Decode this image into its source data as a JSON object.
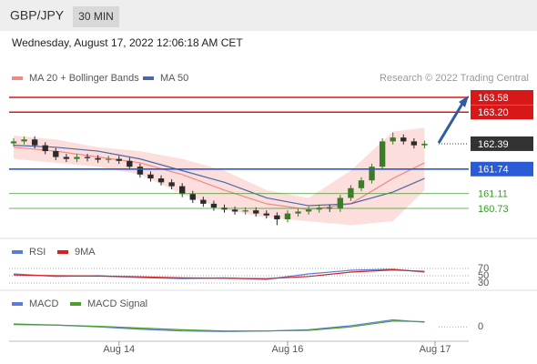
{
  "header": {
    "symbol": "GBP/JPY",
    "interval": "30 MIN",
    "timestamp": "Wednesday, August 17, 2022 12:06:18 AM CET",
    "credit": "Research © 2022 Trading Central"
  },
  "chart_data": [
    {
      "type": "candlestick",
      "xlim": [
        0,
        40
      ],
      "ylim": [
        159.96,
        163.86
      ],
      "up_color": "#3d7a2a",
      "down_color": "#2b2b2b",
      "ohlc": {
        "x": [
          0,
          1,
          2,
          3,
          4,
          5,
          6,
          7,
          8,
          9,
          10,
          11,
          12,
          13,
          14,
          15,
          16,
          17,
          18,
          19,
          20,
          21,
          22,
          23,
          24,
          25,
          26,
          27,
          28,
          29,
          30,
          31,
          32,
          33,
          34,
          35,
          36,
          37,
          38,
          39
        ],
        "open": [
          162.4,
          162.45,
          162.5,
          162.35,
          162.2,
          162.05,
          162.0,
          162.05,
          162.02,
          161.98,
          162.0,
          161.95,
          161.8,
          161.6,
          161.5,
          161.4,
          161.3,
          161.1,
          160.95,
          160.85,
          160.75,
          160.7,
          160.65,
          160.68,
          160.6,
          160.55,
          160.45,
          160.6,
          160.65,
          160.7,
          160.75,
          160.72,
          161.0,
          161.25,
          161.45,
          161.8,
          162.45,
          162.55,
          162.45,
          162.35
        ],
        "high": [
          162.53,
          162.58,
          162.58,
          162.43,
          162.28,
          162.13,
          162.13,
          162.13,
          162.1,
          162.08,
          162.08,
          162.03,
          161.88,
          161.68,
          161.58,
          161.48,
          161.38,
          161.18,
          161.03,
          160.93,
          160.83,
          160.78,
          160.76,
          160.76,
          160.68,
          160.63,
          160.68,
          160.73,
          160.78,
          160.83,
          160.83,
          161.08,
          161.33,
          161.53,
          161.88,
          162.53,
          162.68,
          162.63,
          162.53,
          162.47
        ],
        "low": [
          162.32,
          162.37,
          162.27,
          162.12,
          161.97,
          161.92,
          161.92,
          161.94,
          161.9,
          161.9,
          161.87,
          161.72,
          161.52,
          161.42,
          161.32,
          161.22,
          161.02,
          160.87,
          160.77,
          160.67,
          160.62,
          160.57,
          160.57,
          160.52,
          160.47,
          160.3,
          160.37,
          160.52,
          160.57,
          160.62,
          160.64,
          160.64,
          160.92,
          161.17,
          161.37,
          161.72,
          162.37,
          162.37,
          162.27,
          162.27
        ],
        "close": [
          162.45,
          162.5,
          162.35,
          162.2,
          162.05,
          162.0,
          162.05,
          162.02,
          161.98,
          162.0,
          161.95,
          161.8,
          161.6,
          161.5,
          161.4,
          161.3,
          161.1,
          160.95,
          160.85,
          160.75,
          160.7,
          160.65,
          160.68,
          160.6,
          160.55,
          160.45,
          160.6,
          160.65,
          160.7,
          160.75,
          160.72,
          161.0,
          161.25,
          161.45,
          161.8,
          162.45,
          162.55,
          162.45,
          162.35,
          162.39
        ]
      },
      "series": [
        {
          "name": "MA 20 + Bollinger Bands",
          "color": "#f08a84",
          "band_color": "#fbd3d0",
          "x": [
            0,
            4,
            8,
            12,
            16,
            20,
            24,
            28,
            32,
            36,
            39
          ],
          "values": [
            162.3,
            162.2,
            162.05,
            161.9,
            161.6,
            161.2,
            160.85,
            160.7,
            160.85,
            161.5,
            161.9
          ],
          "upper": [
            162.6,
            162.5,
            162.3,
            162.2,
            162.0,
            161.7,
            161.2,
            161.0,
            161.7,
            162.7,
            162.8
          ],
          "lower": [
            162.0,
            161.9,
            161.8,
            161.6,
            161.1,
            160.7,
            160.5,
            160.4,
            160.3,
            160.4,
            161.2
          ]
        },
        {
          "name": "MA 50",
          "color": "#4a68a8",
          "x": [
            0,
            4,
            8,
            12,
            16,
            20,
            24,
            28,
            32,
            36,
            39
          ],
          "values": [
            162.35,
            162.3,
            162.2,
            162.0,
            161.7,
            161.4,
            161.0,
            160.8,
            160.85,
            161.15,
            161.5
          ]
        }
      ],
      "levels": [
        {
          "value": 163.58,
          "color": "#d81818",
          "boxed": true
        },
        {
          "value": 163.2,
          "label": "163.20",
          "color": "#d81818",
          "boxed": true
        },
        {
          "value": 162.39,
          "color": "#333333",
          "boxed": true,
          "dotted": true
        },
        {
          "value": 161.74,
          "color": "#2a5bd7",
          "boxed": true
        },
        {
          "value": 161.11,
          "color": "#3c9a2a",
          "boxed": false
        },
        {
          "value": 160.73,
          "color": "#3c9a2a",
          "boxed": false
        }
      ]
    },
    {
      "type": "line",
      "xlim": [
        0,
        40
      ],
      "ylim": [
        20,
        95
      ],
      "yticks": [
        70,
        50,
        30
      ],
      "series": [
        {
          "name": "RSI",
          "color": "#5b7bd5",
          "x": [
            0,
            4,
            8,
            12,
            16,
            20,
            24,
            28,
            32,
            36,
            39
          ],
          "values": [
            55,
            48,
            50,
            45,
            42,
            44,
            40,
            55,
            65,
            68,
            60
          ]
        },
        {
          "name": "9MA",
          "color": "#d42020",
          "x": [
            0,
            4,
            8,
            12,
            16,
            20,
            24,
            28,
            32,
            36,
            39
          ],
          "values": [
            52,
            50,
            49,
            47,
            44,
            43,
            42,
            48,
            60,
            66,
            62
          ]
        }
      ]
    },
    {
      "type": "line",
      "xlim": [
        0,
        40
      ],
      "ylim": [
        -0.2,
        0.3
      ],
      "yticks": [
        0
      ],
      "xticks": [
        {
          "value": 10,
          "label": "Aug 14"
        },
        {
          "value": 26,
          "label": "Aug 16"
        },
        {
          "value": 40,
          "label": "Aug 17"
        }
      ],
      "series": [
        {
          "name": "MACD",
          "color": "#5b7bd5",
          "x": [
            0,
            4,
            8,
            12,
            16,
            20,
            24,
            28,
            32,
            36,
            39
          ],
          "values": [
            0.05,
            0.03,
            0.0,
            -0.04,
            -0.07,
            -0.08,
            -0.07,
            -0.05,
            0.02,
            0.12,
            0.08
          ]
        },
        {
          "name": "MACD Signal",
          "color": "#4aa02a",
          "x": [
            0,
            4,
            8,
            12,
            16,
            20,
            24,
            28,
            32,
            36,
            39
          ],
          "values": [
            0.04,
            0.03,
            0.01,
            -0.02,
            -0.05,
            -0.07,
            -0.07,
            -0.06,
            0.0,
            0.1,
            0.09
          ]
        }
      ]
    }
  ]
}
